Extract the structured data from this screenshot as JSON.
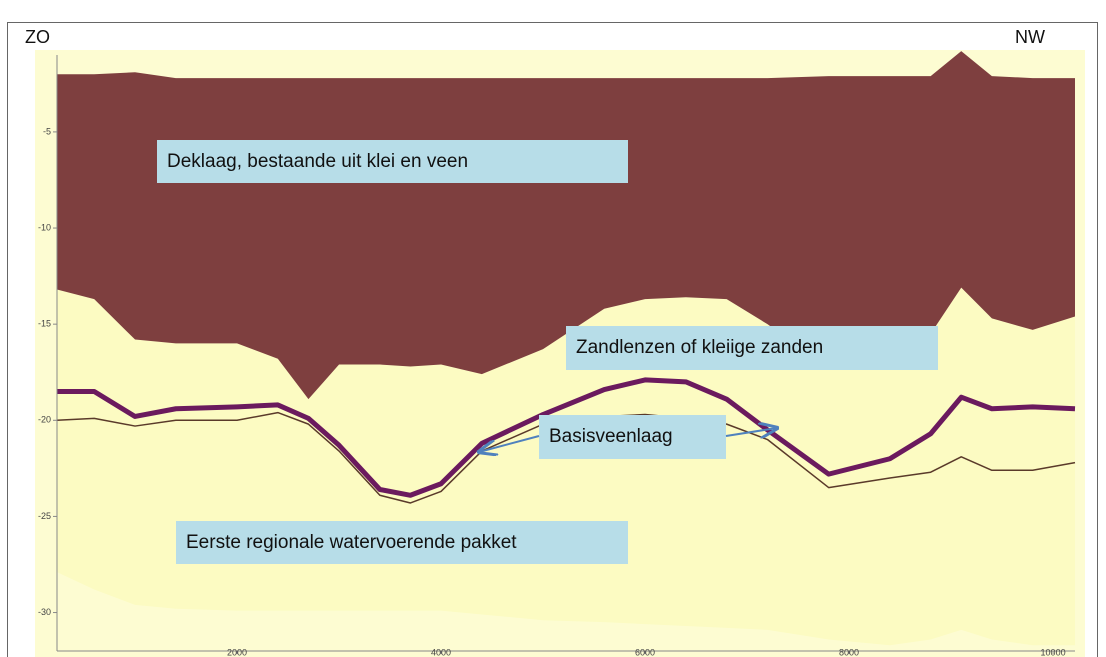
{
  "chart_data": {
    "type": "area",
    "left_label": "ZO",
    "right_label": "NW",
    "x": [
      235,
      600,
      1000,
      1400,
      2000,
      2400,
      2700,
      3000,
      3400,
      3700,
      4000,
      4400,
      5000,
      5600,
      6000,
      6400,
      6800,
      7200,
      7800,
      8400,
      8800,
      9100,
      9400,
      9800,
      10215
    ],
    "xlim": [
      235,
      10215
    ],
    "xticks": [
      2000,
      4000,
      6000,
      8000,
      10000
    ],
    "ylim": [
      -32,
      -1
    ],
    "yticks": [
      -5,
      -10,
      -15,
      -20,
      -25,
      -30
    ],
    "layers": [
      {
        "color": "#fcfbc2",
        "top": [
          -13.2,
          -13.7,
          -15.8,
          -16,
          -16,
          -16.8,
          -18.9,
          -17.1,
          -17.1,
          -17.2,
          -17.1,
          -17.6,
          -16.3,
          -14.2,
          -13.7,
          -13.6,
          -13.7,
          -15,
          -17.3,
          -17.3,
          -15.5,
          -13.1,
          -14.7,
          -15.3,
          -14.6
        ],
        "bottom": [
          -27.9,
          -28.8,
          -29.6,
          -29.8,
          -29.9,
          -29.9,
          -29.9,
          -29.9,
          -29.9,
          -29.9,
          -29.9,
          -30.1,
          -30.4,
          -30.5,
          -30.6,
          -30.7,
          -30.8,
          -30.9,
          -31.4,
          -31.7,
          -31.4,
          -30.9,
          -31.4,
          -31.7,
          -31.7
        ]
      },
      {
        "color": "#7e3f3f",
        "top": [
          -2,
          -2,
          -1.9,
          -2.2,
          -2.2,
          -2.2,
          -2.2,
          -2.2,
          -2.2,
          -2.2,
          -2.2,
          -2.2,
          -2.2,
          -2.2,
          -2.2,
          -2.2,
          -2.2,
          -2.2,
          -2.1,
          -2.1,
          -2.1,
          -0.8,
          -2.1,
          -2.2,
          -2.2
        ],
        "bottom": [
          -13.2,
          -13.7,
          -15.8,
          -16,
          -16,
          -16.8,
          -18.9,
          -17.1,
          -17.1,
          -17.2,
          -17.1,
          -17.6,
          -16.3,
          -14.2,
          -13.7,
          -13.6,
          -13.7,
          -15,
          -17.3,
          -17.3,
          -15.5,
          -13.1,
          -14.7,
          -15.3,
          -14.6
        ]
      }
    ],
    "lines": [
      {
        "color": "#5a3a2a",
        "width": 1.5,
        "values": [
          -20,
          -19.9,
          -20.3,
          -20,
          -20,
          -19.6,
          -20.2,
          -21.6,
          -23.9,
          -24.3,
          -23.7,
          -21.6,
          -20.2,
          -19.8,
          -19.7,
          -19.9,
          -20.2,
          -21,
          -23.5,
          -23,
          -22.7,
          -21.9,
          -22.6,
          -22.6,
          -22.2
        ]
      },
      {
        "color": "#6b1a5e",
        "width": 5,
        "values": [
          -18.5,
          -18.5,
          -19.8,
          -19.4,
          -19.3,
          -19.2,
          -19.9,
          -21.3,
          -23.6,
          -23.9,
          -23.3,
          -21.2,
          -19.7,
          -18.4,
          -17.9,
          -18,
          -18.9,
          -20.5,
          -22.8,
          -22,
          -20.7,
          -18.8,
          -19.4,
          -19.3,
          -19.4
        ]
      }
    ],
    "annotations": [
      "Deklaag, bestaande uit klei en veen",
      "Zandlenzen of kleiige zanden",
      "Basisveenlaag",
      "Eerste regionale watervoerende pakket"
    ]
  }
}
